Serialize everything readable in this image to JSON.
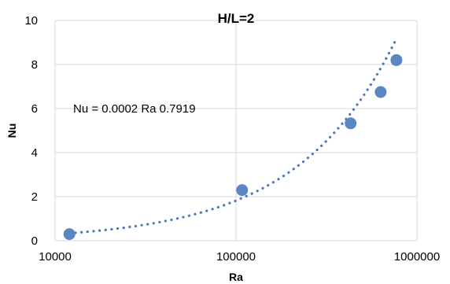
{
  "chart_data": {
    "type": "scatter",
    "title": "H/L=2",
    "xlabel": "Ra",
    "ylabel": "Nu",
    "x_scale": "log",
    "xlim": [
      10000,
      1000000
    ],
    "ylim": [
      0,
      10
    ],
    "x_ticks": [
      10000,
      100000,
      1000000
    ],
    "x_tick_labels": [
      "10000",
      "100000",
      "1000000"
    ],
    "y_ticks": [
      0,
      2,
      4,
      6,
      8,
      10
    ],
    "y_tick_labels": [
      "0",
      "2",
      "4",
      "6",
      "8",
      "10"
    ],
    "grid": "major",
    "legend": "none",
    "series": [
      {
        "points": [
          {
            "x": 12000,
            "y": 0.3
          },
          {
            "x": 108000,
            "y": 2.3
          },
          {
            "x": 430000,
            "y": 5.33
          },
          {
            "x": 630000,
            "y": 6.75
          },
          {
            "x": 770000,
            "y": 8.2
          }
        ]
      }
    ],
    "trendline": {
      "type": "power",
      "coefficient": 0.0002,
      "exponent": 0.7919,
      "style": "dotted",
      "equation_label": "Nu = 0.0002 Ra 0.7919"
    },
    "colors": {
      "points": "#5b86c4",
      "trendline": "#4a78b8",
      "grid": "#d9d9d9",
      "axis": "#d9d9d9"
    }
  }
}
